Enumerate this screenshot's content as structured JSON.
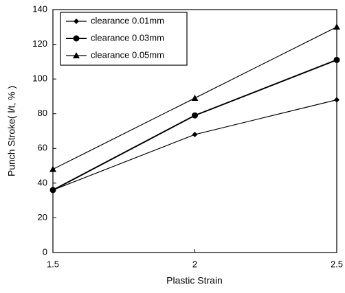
{
  "chart_data": {
    "type": "line",
    "x_label": "Plastic Strain",
    "y_label": "Punch Stroke( l/t, % )",
    "x": [
      1.5,
      2,
      2.5
    ],
    "series": [
      {
        "name": "clearance 0.01mm",
        "color": "#000000",
        "marker": "diamond",
        "values": [
          36,
          68,
          88
        ]
      },
      {
        "name": "clearance 0.03mm",
        "color": "#000000",
        "marker": "circle",
        "values": [
          36,
          79,
          111
        ]
      },
      {
        "name": "clearance 0.05mm",
        "color": "#000000",
        "marker": "triangle",
        "values": [
          48,
          89,
          130
        ]
      }
    ],
    "xlim": [
      1.5,
      2.5
    ],
    "xticks": [
      1.5,
      2,
      2.5
    ],
    "ylim": [
      0,
      140
    ],
    "yticks": [
      0,
      20,
      40,
      60,
      80,
      100,
      120,
      140
    ],
    "grid": false,
    "legend": "upper left"
  }
}
